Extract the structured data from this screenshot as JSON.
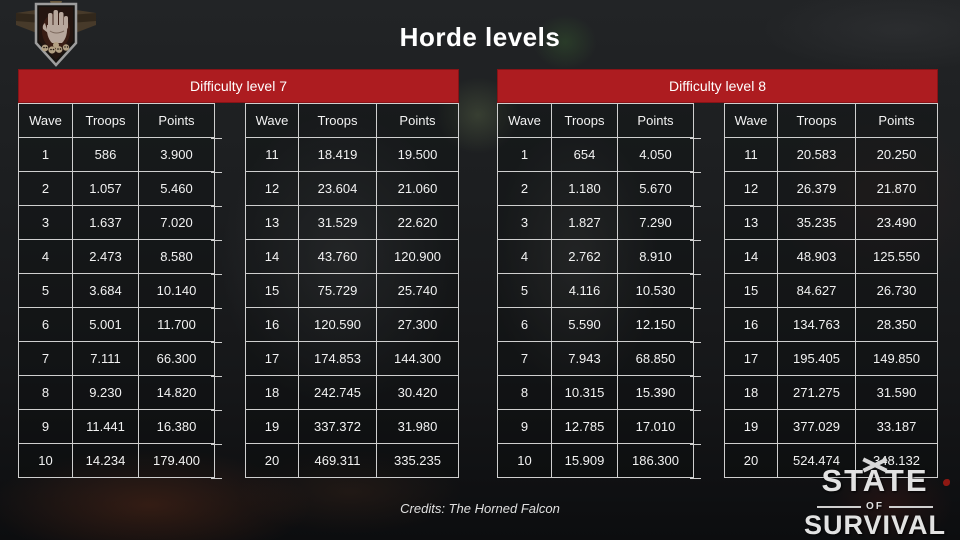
{
  "page": {
    "title": "Horde levels",
    "credits": "Credits: The Horned Falcon"
  },
  "icons": {
    "badge": "zombie-hand-shield",
    "logo_emblem": "crossed-guns"
  },
  "colors": {
    "header_red": "#ad1c20",
    "table_border": "#cfcfcf",
    "text": "#f2f2f2",
    "background": "#1a1c1e"
  },
  "logo": {
    "top": "STATE",
    "middle": "OF",
    "bottom": "SURVIVAL"
  },
  "chart_data": [
    {
      "type": "table",
      "title": "Difficulty level 7",
      "columns": [
        "Wave",
        "Troops",
        "Points"
      ],
      "left_rows": [
        [
          "1",
          "586",
          "3.900"
        ],
        [
          "2",
          "1.057",
          "5.460"
        ],
        [
          "3",
          "1.637",
          "7.020"
        ],
        [
          "4",
          "2.473",
          "8.580"
        ],
        [
          "5",
          "3.684",
          "10.140"
        ],
        [
          "6",
          "5.001",
          "11.700"
        ],
        [
          "7",
          "7.111",
          "66.300"
        ],
        [
          "8",
          "9.230",
          "14.820"
        ],
        [
          "9",
          "11.441",
          "16.380"
        ],
        [
          "10",
          "14.234",
          "179.400"
        ]
      ],
      "right_rows": [
        [
          "11",
          "18.419",
          "19.500"
        ],
        [
          "12",
          "23.604",
          "21.060"
        ],
        [
          "13",
          "31.529",
          "22.620"
        ],
        [
          "14",
          "43.760",
          "120.900"
        ],
        [
          "15",
          "75.729",
          "25.740"
        ],
        [
          "16",
          "120.590",
          "27.300"
        ],
        [
          "17",
          "174.853",
          "144.300"
        ],
        [
          "18",
          "242.745",
          "30.420"
        ],
        [
          "19",
          "337.372",
          "31.980"
        ],
        [
          "20",
          "469.311",
          "335.235"
        ]
      ]
    },
    {
      "type": "table",
      "title": "Difficulty level 8",
      "columns": [
        "Wave",
        "Troops",
        "Points"
      ],
      "left_rows": [
        [
          "1",
          "654",
          "4.050"
        ],
        [
          "2",
          "1.180",
          "5.670"
        ],
        [
          "3",
          "1.827",
          "7.290"
        ],
        [
          "4",
          "2.762",
          "8.910"
        ],
        [
          "5",
          "4.116",
          "10.530"
        ],
        [
          "6",
          "5.590",
          "12.150"
        ],
        [
          "7",
          "7.943",
          "68.850"
        ],
        [
          "8",
          "10.315",
          "15.390"
        ],
        [
          "9",
          "12.785",
          "17.010"
        ],
        [
          "10",
          "15.909",
          "186.300"
        ]
      ],
      "right_rows": [
        [
          "11",
          "20.583",
          "20.250"
        ],
        [
          "12",
          "26.379",
          "21.870"
        ],
        [
          "13",
          "35.235",
          "23.490"
        ],
        [
          "14",
          "48.903",
          "125.550"
        ],
        [
          "15",
          "84.627",
          "26.730"
        ],
        [
          "16",
          "134.763",
          "28.350"
        ],
        [
          "17",
          "195.405",
          "149.850"
        ],
        [
          "18",
          "271.275",
          "31.590"
        ],
        [
          "19",
          "377.029",
          "33.187"
        ],
        [
          "20",
          "524.474",
          "348.132"
        ]
      ]
    }
  ]
}
